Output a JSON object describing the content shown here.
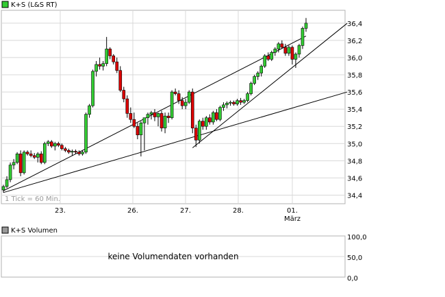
{
  "chart_data": [
    {
      "type": "candlestick",
      "legend": "K+S (L&S RT)",
      "info_label": "1 Tick = 60 Min.",
      "ylim": [
        34.3,
        36.55
      ],
      "y_ticks": [
        "34,4",
        "34,6",
        "34,8",
        "35,0",
        "35,2",
        "35,4",
        "35,6",
        "35,8",
        "36,0",
        "36,2",
        "36,4"
      ],
      "x_labels": [
        {
          "label": "23.",
          "sub": ""
        },
        {
          "label": "26.",
          "sub": ""
        },
        {
          "label": "27.",
          "sub": ""
        },
        {
          "label": "28.",
          "sub": ""
        },
        {
          "label": "01.",
          "sub": "März"
        }
      ],
      "candles": [
        [
          34.46,
          34.52,
          34.43,
          34.5
        ],
        [
          34.5,
          34.62,
          34.48,
          34.58
        ],
        [
          34.58,
          34.78,
          34.55,
          34.75
        ],
        [
          34.75,
          34.82,
          34.7,
          34.78
        ],
        [
          34.78,
          34.9,
          34.76,
          34.88
        ],
        [
          34.88,
          34.92,
          34.62,
          34.66
        ],
        [
          34.66,
          34.92,
          34.64,
          34.9
        ],
        [
          34.9,
          34.92,
          34.86,
          34.88
        ],
        [
          34.88,
          34.92,
          34.84,
          34.86
        ],
        [
          34.86,
          34.89,
          34.82,
          34.84
        ],
        [
          34.84,
          34.9,
          34.78,
          34.88
        ],
        [
          34.88,
          34.91,
          34.76,
          34.78
        ],
        [
          34.78,
          35.02,
          34.76,
          35.0
        ],
        [
          35.0,
          35.04,
          34.97,
          35.02
        ],
        [
          35.02,
          35.04,
          34.95,
          34.97
        ],
        [
          34.97,
          35.02,
          34.92,
          35.0
        ],
        [
          35.0,
          35.02,
          34.96,
          34.98
        ],
        [
          34.98,
          35.0,
          34.92,
          34.94
        ],
        [
          34.94,
          34.96,
          34.9,
          34.92
        ],
        [
          34.92,
          34.94,
          34.88,
          34.9
        ],
        [
          34.9,
          34.93,
          34.86,
          34.91
        ],
        [
          34.91,
          34.93,
          34.88,
          34.9
        ],
        [
          34.9,
          34.92,
          34.86,
          34.88
        ],
        [
          34.88,
          34.92,
          34.86,
          34.9
        ],
        [
          34.9,
          35.36,
          34.88,
          35.34
        ],
        [
          35.34,
          35.46,
          35.3,
          35.44
        ],
        [
          35.44,
          35.86,
          35.42,
          35.84
        ],
        [
          35.84,
          35.96,
          35.78,
          35.92
        ],
        [
          35.92,
          36.0,
          35.86,
          35.9
        ],
        [
          35.9,
          35.96,
          35.85,
          35.93
        ],
        [
          35.93,
          36.24,
          35.9,
          36.1
        ],
        [
          36.1,
          36.12,
          35.98,
          36.02
        ],
        [
          36.02,
          36.04,
          35.92,
          35.95
        ],
        [
          35.95,
          36.0,
          35.82,
          35.85
        ],
        [
          35.85,
          35.9,
          35.6,
          35.62
        ],
        [
          35.62,
          35.66,
          35.48,
          35.52
        ],
        [
          35.52,
          35.56,
          35.3,
          35.35
        ],
        [
          35.35,
          35.42,
          35.24,
          35.28
        ],
        [
          35.28,
          35.36,
          35.18,
          35.2
        ],
        [
          35.2,
          35.24,
          35.05,
          35.1
        ],
        [
          35.1,
          35.26,
          34.85,
          35.24
        ],
        [
          35.24,
          35.3,
          34.92,
          35.3
        ],
        [
          35.3,
          35.36,
          35.22,
          35.34
        ],
        [
          35.34,
          35.38,
          35.28,
          35.36
        ],
        [
          35.36,
          35.4,
          35.26,
          35.31
        ],
        [
          35.31,
          35.36,
          35.2,
          35.35
        ],
        [
          35.35,
          35.38,
          35.14,
          35.18
        ],
        [
          35.18,
          35.36,
          35.12,
          35.32
        ],
        [
          35.32,
          35.36,
          35.24,
          35.3
        ],
        [
          35.3,
          35.62,
          35.28,
          35.6
        ],
        [
          35.6,
          35.64,
          35.56,
          35.58
        ],
        [
          35.58,
          35.62,
          35.46,
          35.5
        ],
        [
          35.5,
          35.54,
          35.4,
          35.44
        ],
        [
          35.44,
          35.52,
          35.4,
          35.48
        ],
        [
          35.48,
          35.62,
          35.46,
          35.6
        ],
        [
          35.6,
          35.64,
          35.12,
          35.18
        ],
        [
          35.18,
          35.22,
          34.96,
          35.04
        ],
        [
          35.04,
          35.28,
          35.0,
          35.26
        ],
        [
          35.26,
          35.3,
          35.16,
          35.2
        ],
        [
          35.2,
          35.32,
          35.16,
          35.3
        ],
        [
          35.3,
          35.34,
          35.22,
          35.25
        ],
        [
          35.25,
          35.38,
          35.22,
          35.36
        ],
        [
          35.36,
          35.4,
          35.26,
          35.28
        ],
        [
          35.28,
          35.44,
          35.26,
          35.42
        ],
        [
          35.42,
          35.48,
          35.38,
          35.45
        ],
        [
          35.45,
          35.49,
          35.41,
          35.47
        ],
        [
          35.47,
          35.5,
          35.44,
          35.48
        ],
        [
          35.48,
          35.5,
          35.44,
          35.46
        ],
        [
          35.46,
          35.52,
          35.44,
          35.5
        ],
        [
          35.5,
          35.53,
          35.45,
          35.48
        ],
        [
          35.48,
          35.52,
          35.46,
          35.5
        ],
        [
          35.5,
          35.6,
          35.48,
          35.58
        ],
        [
          35.58,
          35.72,
          35.56,
          35.7
        ],
        [
          35.7,
          35.8,
          35.68,
          35.78
        ],
        [
          35.78,
          35.84,
          35.74,
          35.82
        ],
        [
          35.82,
          35.92,
          35.78,
          35.9
        ],
        [
          35.9,
          36.04,
          35.88,
          36.02
        ],
        [
          36.02,
          36.06,
          35.96,
          35.98
        ],
        [
          35.98,
          36.08,
          35.96,
          36.06
        ],
        [
          36.06,
          36.12,
          36.02,
          36.1
        ],
        [
          36.1,
          36.18,
          36.06,
          36.16
        ],
        [
          36.16,
          36.2,
          36.1,
          36.12
        ],
        [
          36.12,
          36.16,
          36.02,
          36.05
        ],
        [
          36.05,
          36.14,
          36.02,
          36.12
        ],
        [
          36.12,
          36.14,
          35.92,
          35.98
        ],
        [
          35.98,
          36.06,
          35.88,
          36.04
        ],
        [
          36.04,
          36.16,
          36.0,
          36.14
        ],
        [
          36.14,
          36.36,
          36.1,
          36.34
        ],
        [
          36.34,
          36.46,
          36.3,
          36.4
        ]
      ],
      "trendlines": [
        [
          [
            0,
            34.45
          ],
          [
            88,
            36.25
          ]
        ],
        [
          [
            0,
            34.43
          ],
          [
            100,
            35.6
          ]
        ],
        [
          [
            55,
            34.95
          ],
          [
            100,
            36.4
          ]
        ]
      ]
    },
    {
      "type": "bar",
      "legend": "K+S Volumen",
      "message": "keine Volumendaten vorhanden",
      "y_ticks": [
        "100,0",
        "50,0",
        "0,0"
      ],
      "values": []
    }
  ]
}
